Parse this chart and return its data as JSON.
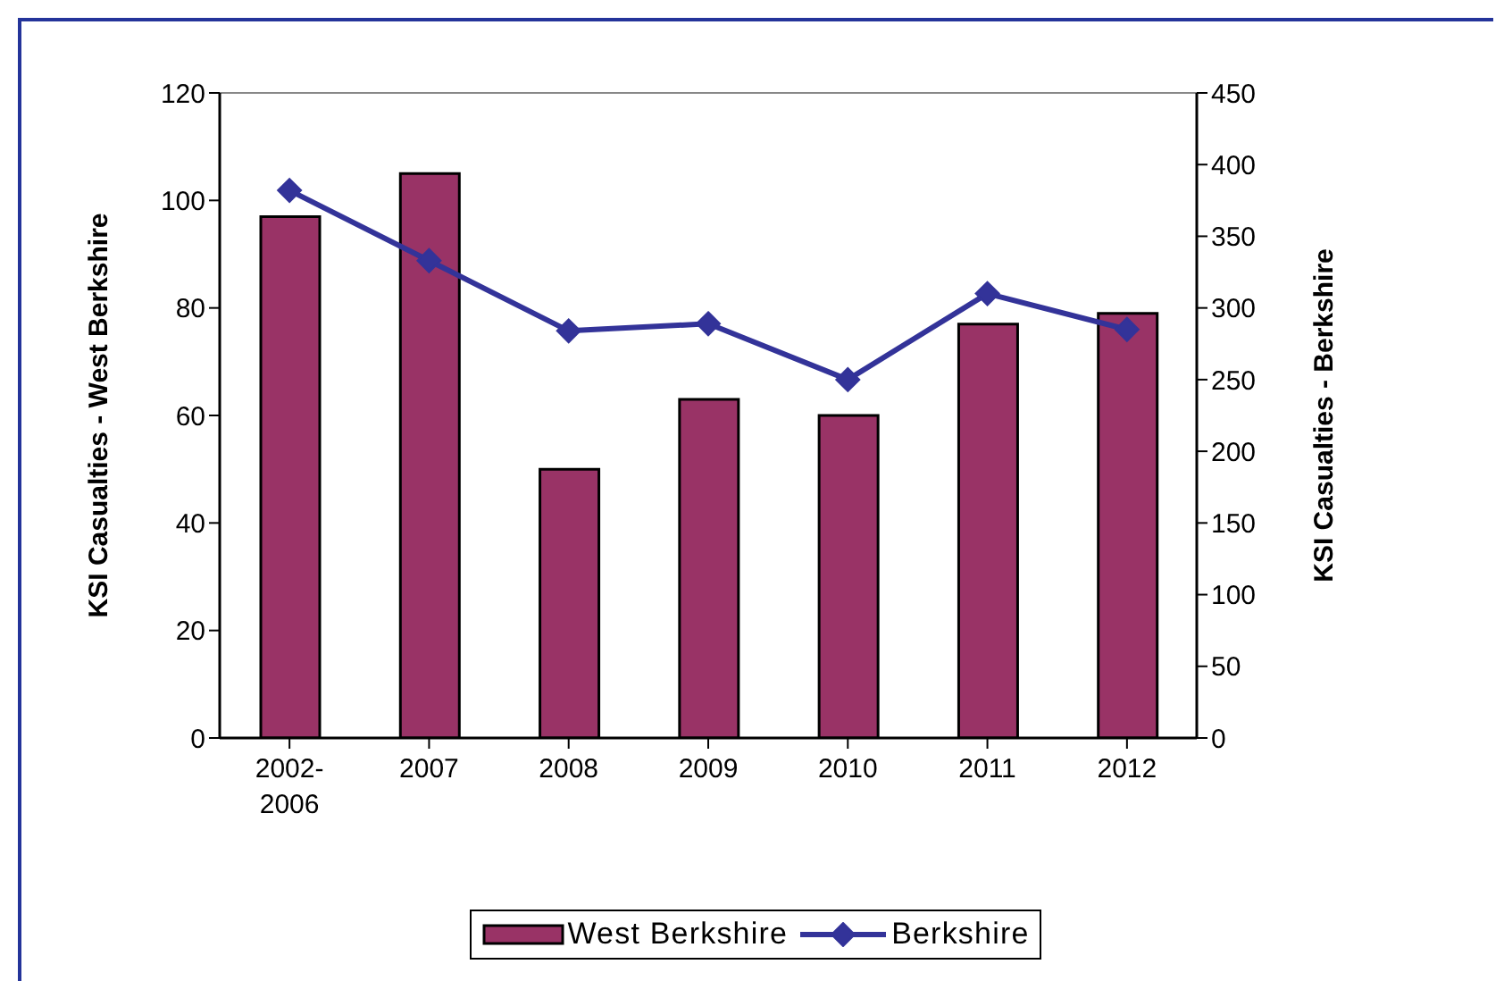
{
  "chart_data": {
    "type": "bar",
    "categories": [
      "2002-2006",
      "2007",
      "2008",
      "2009",
      "2010",
      "2011",
      "2012"
    ],
    "series": [
      {
        "name": "West Berkshire",
        "color": "#993366",
        "values": [
          97,
          105,
          50,
          63,
          60,
          77,
          79
        ]
      },
      {
        "name": "Berkshire",
        "type": "line",
        "axis": "y2",
        "color": "#333399",
        "values": [
          382,
          333,
          284,
          289,
          250,
          310,
          285
        ]
      }
    ],
    "ylabel": "KSI Casualties - West Berkshire",
    "y2label": "KSI Casualties - Berkshire",
    "ylim": [
      0,
      120
    ],
    "yticks": [
      0,
      20,
      40,
      60,
      80,
      100,
      120
    ],
    "y2lim": [
      0,
      450
    ],
    "y2ticks": [
      0,
      50,
      100,
      150,
      200,
      250,
      300,
      350,
      400,
      450
    ],
    "legend": "bottom",
    "marker": "diamond"
  }
}
